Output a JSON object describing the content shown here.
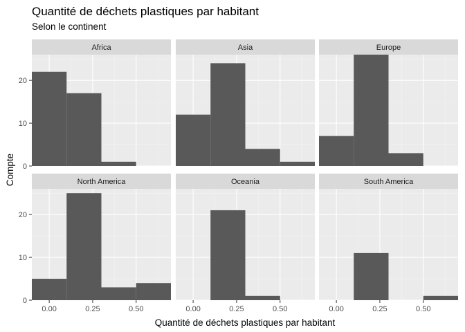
{
  "chart_title": "Quantité de déchets plastiques par habitant",
  "chart_subtitle": "Selon le continent",
  "chart_data": {
    "type": "bar",
    "title": "Quantité de déchets plastiques par habitant",
    "subtitle": "Selon le continent",
    "xlabel": "Quantité de déchets plastiques par habitant",
    "ylabel": "Compte",
    "xlim": [
      -0.1,
      0.7
    ],
    "ylim": [
      0,
      26
    ],
    "x_ticks": [
      0.0,
      0.25,
      0.5
    ],
    "x_tick_labels": [
      "0.00",
      "0.25",
      "0.50"
    ],
    "y_ticks": [
      0,
      10,
      20
    ],
    "y_tick_labels": [
      "0",
      "10",
      "20"
    ],
    "bins": [
      -0.1,
      0.1,
      0.3,
      0.5,
      0.7
    ],
    "bar_color": "#595959",
    "panel_background": "#ebebeb",
    "strip_background": "#d9d9d9",
    "grid": true,
    "facets": [
      {
        "name": "Africa",
        "counts": [
          22,
          17,
          1,
          0
        ]
      },
      {
        "name": "Asia",
        "counts": [
          12,
          24,
          4,
          1
        ]
      },
      {
        "name": "Europe",
        "counts": [
          7,
          26,
          3,
          0
        ]
      },
      {
        "name": "North America",
        "counts": [
          5,
          25,
          3,
          4
        ]
      },
      {
        "name": "Oceania",
        "counts": [
          0,
          21,
          1,
          0
        ]
      },
      {
        "name": "South America",
        "counts": [
          0,
          11,
          0,
          1
        ]
      }
    ]
  }
}
